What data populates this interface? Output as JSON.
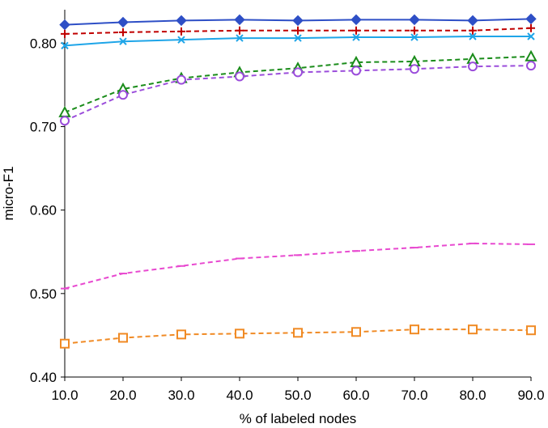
{
  "chart_data": {
    "type": "line",
    "title": "",
    "xlabel": "% of labeled nodes",
    "ylabel": "micro-F1",
    "x": [
      10,
      20,
      30,
      40,
      50,
      60,
      70,
      80,
      90
    ],
    "x_tick_labels": [
      "10.0",
      "20.0",
      "30.0",
      "40.0",
      "50.0",
      "60.0",
      "70.0",
      "80.0",
      "90.0"
    ],
    "y_ticks": [
      0.4,
      0.5,
      0.6,
      0.7,
      0.8
    ],
    "y_tick_labels": [
      "0.40",
      "0.50",
      "0.60",
      "0.70",
      "0.80"
    ],
    "ylim": [
      0.4,
      0.84
    ],
    "xlim": [
      10,
      90
    ],
    "grid": false,
    "legend": "none",
    "series": [
      {
        "color": "#2E4FC6",
        "marker": "diamond",
        "dash": false,
        "values": [
          0.822,
          0.825,
          0.827,
          0.828,
          0.827,
          0.828,
          0.828,
          0.827,
          0.829
        ]
      },
      {
        "color": "#C00000",
        "marker": "plus",
        "dash": true,
        "values": [
          0.811,
          0.813,
          0.814,
          0.815,
          0.815,
          0.815,
          0.815,
          0.815,
          0.818
        ]
      },
      {
        "color": "#1EA5E8",
        "marker": "x",
        "dash": false,
        "values": [
          0.797,
          0.802,
          0.804,
          0.806,
          0.806,
          0.807,
          0.807,
          0.808,
          0.808
        ]
      },
      {
        "color": "#1A8C1A",
        "marker": "triangle",
        "dash": true,
        "values": [
          0.717,
          0.745,
          0.758,
          0.765,
          0.77,
          0.777,
          0.778,
          0.781,
          0.784
        ]
      },
      {
        "color": "#9B4DDB",
        "marker": "circle",
        "dash": true,
        "values": [
          0.707,
          0.738,
          0.756,
          0.76,
          0.765,
          0.767,
          0.769,
          0.772,
          0.773
        ]
      },
      {
        "color": "#E84AD0",
        "marker": "dash",
        "dash": true,
        "values": [
          0.506,
          0.524,
          0.533,
          0.542,
          0.546,
          0.551,
          0.555,
          0.56,
          0.559
        ]
      },
      {
        "color": "#F08A24",
        "marker": "square",
        "dash": true,
        "values": [
          0.44,
          0.447,
          0.451,
          0.452,
          0.453,
          0.454,
          0.457,
          0.457,
          0.456
        ]
      }
    ]
  }
}
